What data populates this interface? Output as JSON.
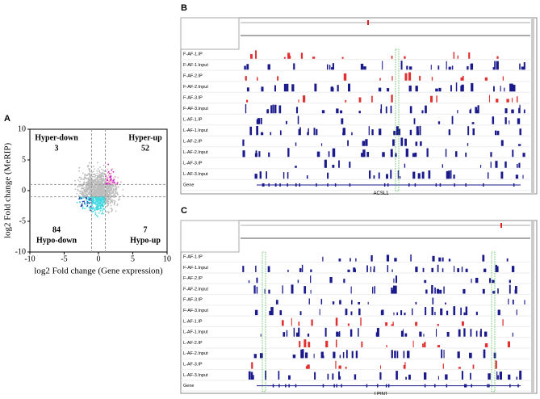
{
  "panel_a": {
    "label": "A",
    "xlabel": "log2 Fold change (Gene expression)",
    "ylabel": "log2 Fold change (MeRIP)",
    "xlim": [
      -10,
      10
    ],
    "ylim": [
      -10,
      10
    ],
    "xticks": [
      -10,
      -5,
      0,
      5,
      10
    ],
    "yticks": [
      -10,
      -5,
      0,
      5,
      10
    ],
    "quadrants": [
      {
        "name": "Hyper-down",
        "count": 3
      },
      {
        "name": "Hyper-up",
        "count": 52
      },
      {
        "name": "Hypo-down",
        "count": 84
      },
      {
        "name": "Hypo-up",
        "count": 7
      }
    ]
  },
  "tracks": [
    "F-AF-1.IP",
    "F-AF-1.Input",
    "F-AF-2.IP",
    "F-AF-2.Input",
    "F-AF-3.IP",
    "F-AF-3.Input",
    "L-AF-1.IP",
    "L-AF-1.Input",
    "L-AF-2.IP",
    "L-AF-2.Input",
    "L-AF-3.IP",
    "L-AF-3.Input",
    "Gene"
  ],
  "panel_b": {
    "label": "B",
    "gene": "ACSL1"
  },
  "panel_c": {
    "label": "C",
    "gene": "LPIN1"
  }
}
